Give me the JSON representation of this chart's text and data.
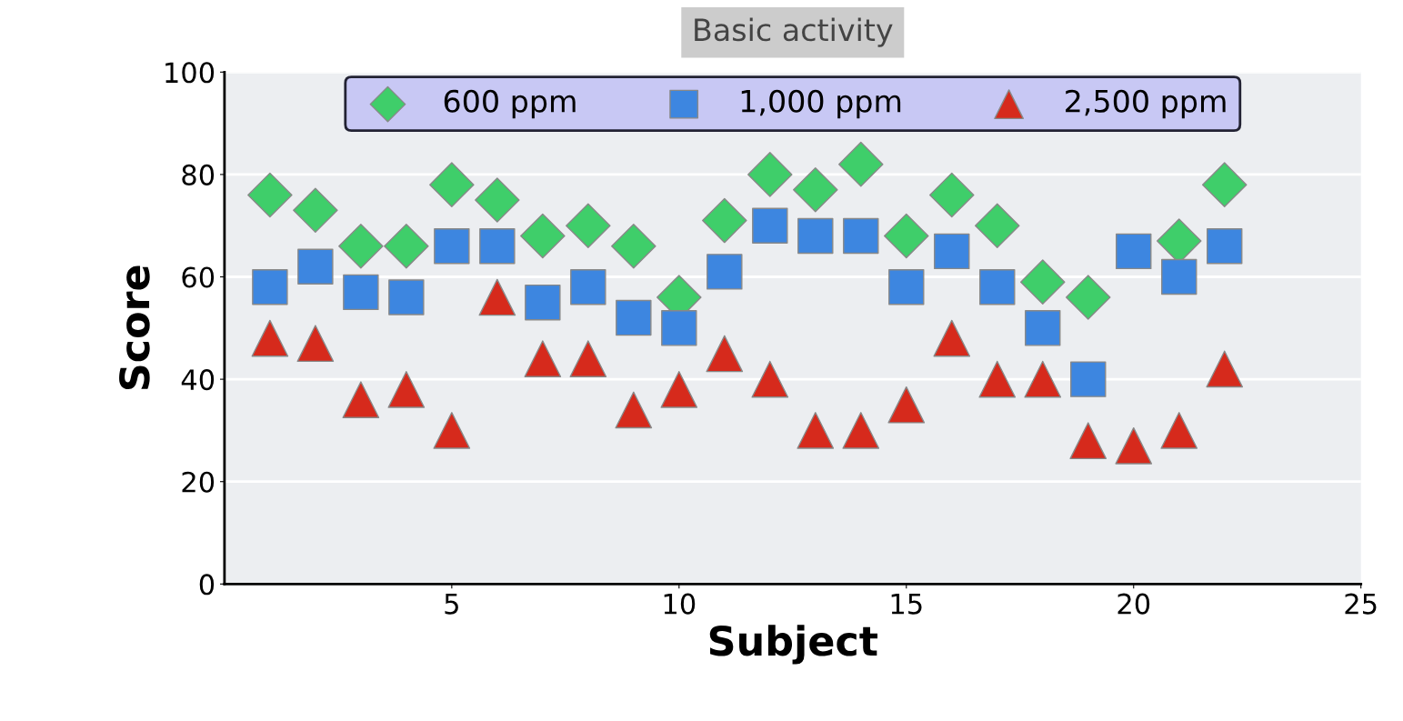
{
  "chart_data": {
    "type": "scatter",
    "title": "Basic activity",
    "xlabel": "Subject",
    "ylabel": "Score",
    "x": [
      1,
      2,
      3,
      4,
      5,
      6,
      7,
      8,
      9,
      10,
      11,
      12,
      13,
      14,
      15,
      16,
      17,
      18,
      19,
      20,
      21,
      22
    ],
    "series": [
      {
        "name": "600 ppm",
        "color": "#3fce6a",
        "marker": "diamond",
        "values": [
          76,
          73,
          66,
          66,
          78,
          75,
          68,
          70,
          66,
          56,
          71,
          80,
          77,
          82,
          68,
          76,
          70,
          59,
          56,
          null,
          67,
          78
        ]
      },
      {
        "name": "1,000 ppm",
        "color": "#3d86e0",
        "marker": "square",
        "values": [
          58,
          62,
          57,
          56,
          66,
          66,
          55,
          58,
          52,
          50,
          61,
          70,
          68,
          68,
          58,
          65,
          58,
          50,
          40,
          65,
          60,
          66
        ]
      },
      {
        "name": "2,500 ppm",
        "color": "#d62a1c",
        "marker": "triangle",
        "values": [
          48,
          47,
          36,
          38,
          30,
          56,
          44,
          44,
          34,
          38,
          45,
          40,
          30,
          30,
          35,
          48,
          40,
          40,
          28,
          27,
          30,
          42
        ]
      }
    ],
    "xlim": [
      0,
      25
    ],
    "xticks": [
      5,
      10,
      15,
      20,
      25
    ],
    "ylim": [
      0,
      100
    ],
    "yticks": [
      0,
      20,
      40,
      60,
      80,
      100
    ],
    "grid": "y",
    "legend": "top"
  }
}
